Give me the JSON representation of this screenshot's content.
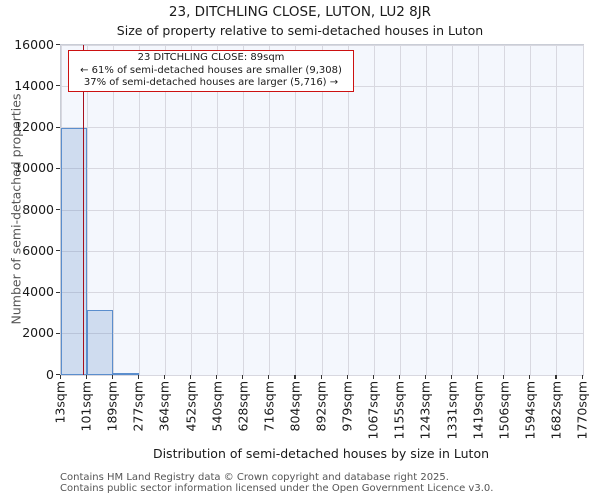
{
  "chart_data": {
    "type": "bar",
    "title": "23, DITCHLING CLOSE, LUTON, LU2 8JR",
    "subtitle": "Size of property relative to semi-detached houses in Luton",
    "xlabel": "Distribution of semi-detached houses by size in Luton",
    "ylabel": "Number of semi-detached properties",
    "ylim": [
      0,
      16000
    ],
    "yticks": [
      0,
      2000,
      4000,
      6000,
      8000,
      10000,
      12000,
      14000,
      16000
    ],
    "bin_edges_sqm": [
      13,
      101,
      189,
      277,
      364,
      452,
      540,
      628,
      716,
      804,
      892,
      979,
      1067,
      1155,
      1243,
      1331,
      1419,
      1506,
      1594,
      1682,
      1770
    ],
    "xtick_labels": [
      "13sqm",
      "101sqm",
      "189sqm",
      "277sqm",
      "364sqm",
      "452sqm",
      "540sqm",
      "628sqm",
      "716sqm",
      "804sqm",
      "892sqm",
      "979sqm",
      "1067sqm",
      "1155sqm",
      "1243sqm",
      "1331sqm",
      "1419sqm",
      "1506sqm",
      "1594sqm",
      "1682sqm",
      "1770sqm"
    ],
    "values": [
      12000,
      3150,
      120,
      0,
      0,
      0,
      0,
      0,
      0,
      0,
      0,
      0,
      0,
      0,
      0,
      0,
      0,
      0,
      0,
      0
    ],
    "grid": true,
    "legend_position": "none",
    "marker_line_sqm": 89,
    "colors": {
      "bar_fill": "rgba(79,129,189,0.22)",
      "bar_border": "#5b8ecd",
      "marker_line": "#a6101d",
      "annotation_border": "#cc1111",
      "plot_background": "#f4f7fd",
      "gridline": "#d8d8e0"
    }
  },
  "annotation": {
    "line1": "23 DITCHLING CLOSE: 89sqm",
    "line2": "← 61% of semi-detached houses are smaller (9,308)",
    "line3": "37% of semi-detached houses are larger (5,716) →"
  },
  "footer": {
    "line1": "Contains HM Land Registry data © Crown copyright and database right 2025.",
    "line2": "Contains public sector information licensed under the Open Government Licence v3.0."
  }
}
